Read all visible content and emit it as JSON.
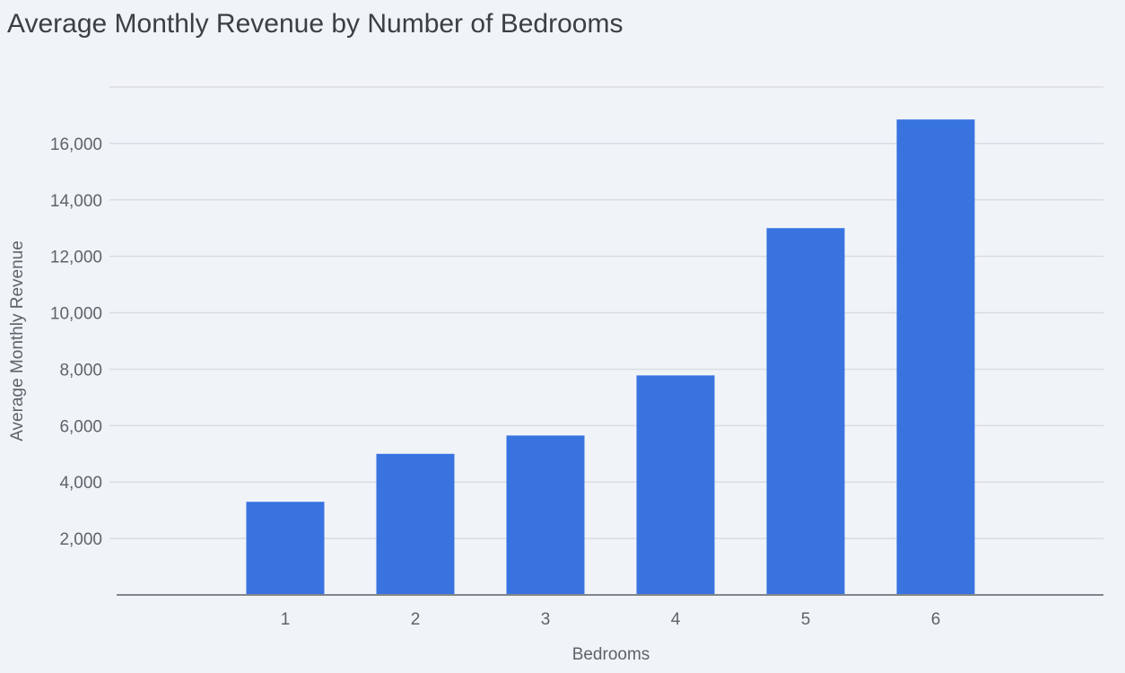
{
  "chart_data": {
    "type": "bar",
    "title": "Average Monthly Revenue by Number of Bedrooms",
    "xlabel": "Bedrooms",
    "ylabel": "Average Monthly Revenue",
    "categories": [
      "1",
      "2",
      "3",
      "4",
      "5",
      "6"
    ],
    "values": [
      3300,
      5000,
      5650,
      7780,
      13000,
      16850
    ],
    "ylim": [
      0,
      18000
    ],
    "yticks": [
      2000,
      4000,
      6000,
      8000,
      10000,
      12000,
      14000,
      16000
    ],
    "ytick_labels": [
      "2,000",
      "4,000",
      "6,000",
      "8,000",
      "10,000",
      "12,000",
      "14,000",
      "16,000"
    ],
    "grid": true,
    "bar_color": "#3873e0"
  }
}
